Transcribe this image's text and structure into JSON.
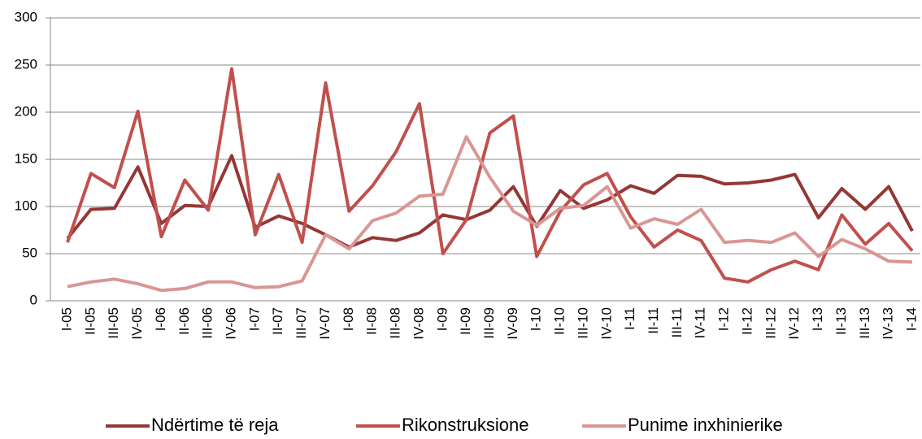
{
  "chart_data": {
    "type": "line",
    "categories": [
      "I-05",
      "II-05",
      "III-05",
      "IV-05",
      "I-06",
      "II-06",
      "III-06",
      "IV-06",
      "I-07",
      "II-07",
      "III-07",
      "IV-07",
      "I-08",
      "II-08",
      "III-08",
      "IV-08",
      "I-09",
      "II-09",
      "III-09",
      "IV-09",
      "I-10",
      "II-10",
      "III-10",
      "IV-10",
      "I-11",
      "II-11",
      "III-11",
      "IV-11",
      "I-12",
      "II-12",
      "III-12",
      "IV-12",
      "I-13",
      "II-13",
      "III-13",
      "IV-13",
      "I-14"
    ],
    "series": [
      {
        "name": "Ndërtime të reja",
        "color": "#953735",
        "values": [
          66,
          97,
          98,
          142,
          82,
          101,
          100,
          154,
          78,
          90,
          82,
          70,
          57,
          67,
          64,
          72,
          91,
          86,
          96,
          121,
          79,
          117,
          98,
          107,
          122,
          114,
          133,
          132,
          124,
          125,
          128,
          134,
          88,
          119,
          97,
          121,
          74
        ]
      },
      {
        "name": "Rikonstruksione",
        "color": "#c0504d",
        "values": [
          62,
          135,
          120,
          201,
          68,
          128,
          96,
          246,
          70,
          134,
          62,
          231,
          95,
          122,
          158,
          209,
          50,
          86,
          178,
          196,
          47,
          95,
          123,
          135,
          89,
          57,
          75,
          64,
          24,
          20,
          33,
          42,
          33,
          91,
          60,
          82,
          53
        ]
      },
      {
        "name": "Punime inxhinierike",
        "color": "#d99694",
        "values": [
          15,
          20,
          23,
          18,
          11,
          13,
          20,
          20,
          14,
          15,
          21,
          70,
          55,
          85,
          93,
          111,
          113,
          174,
          131,
          95,
          80,
          98,
          101,
          121,
          77,
          87,
          81,
          97,
          62,
          64,
          62,
          72,
          47,
          65,
          55,
          42,
          41
        ]
      }
    ],
    "ylim": [
      0,
      300
    ],
    "yticks": [
      0,
      50,
      100,
      150,
      200,
      250,
      300
    ],
    "grid": true,
    "legend": "bottom"
  }
}
